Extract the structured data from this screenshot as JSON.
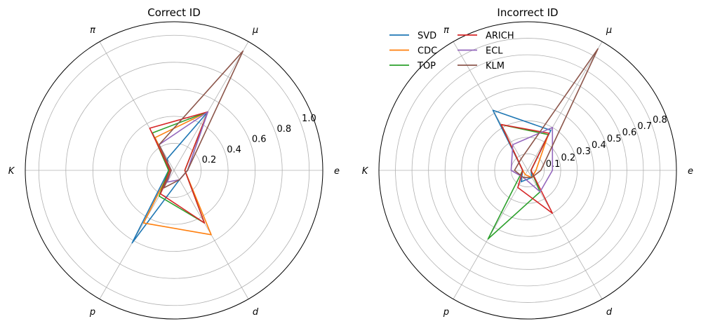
{
  "chart_data": [
    {
      "type": "radar",
      "title": "Correct ID",
      "axes": [
        "e",
        "μ",
        "π",
        "K",
        "p",
        "d"
      ],
      "axis_labels_display": [
        "e",
        "μ",
        "π",
        "K",
        "p",
        "d"
      ],
      "rlim": [
        0,
        1.1
      ],
      "rticks": [
        0.2,
        0.4,
        0.6,
        0.8,
        1.0
      ],
      "rtick_labels": [
        "0.2",
        "0.4",
        "0.6",
        "0.8",
        "1.0"
      ],
      "grid": true,
      "series": [
        {
          "name": "SVD",
          "color": "#1f77b4",
          "values": [
            0.1,
            0.5,
            0.1,
            0.04,
            0.62,
            0.08
          ]
        },
        {
          "name": "CDC",
          "color": "#ff7f0e",
          "values": [
            0.08,
            0.5,
            0.28,
            0.03,
            0.45,
            0.55
          ]
        },
        {
          "name": "TOP",
          "color": "#2ca02c",
          "values": [
            0.08,
            0.5,
            0.32,
            0.04,
            0.22,
            0.45
          ]
        },
        {
          "name": "ARICH",
          "color": "#d62728",
          "values": [
            0.08,
            0.5,
            0.36,
            0.03,
            0.2,
            0.45
          ]
        },
        {
          "name": "ECL",
          "color": "#9467bd",
          "values": [
            0.1,
            0.5,
            0.22,
            0.02,
            0.1,
            0.08
          ]
        },
        {
          "name": "KLM",
          "color": "#8c564b",
          "values": [
            0.1,
            1.02,
            0.22,
            0.02,
            0.15,
            0.08
          ]
        }
      ]
    },
    {
      "type": "radar",
      "title": "Incorrect ID",
      "axes": [
        "e",
        "μ",
        "π",
        "K",
        "p",
        "d"
      ],
      "axis_labels_display": [
        "e",
        "μ",
        "π",
        "K",
        "p",
        "d"
      ],
      "rlim": [
        0,
        0.9
      ],
      "rticks": [
        0.1,
        0.2,
        0.3,
        0.4,
        0.5,
        0.6,
        0.7,
        0.8
      ],
      "rtick_labels": [
        "0.1",
        "0.2",
        "0.3",
        "0.4",
        "0.5",
        "0.6",
        "0.7",
        "0.8"
      ],
      "grid": true,
      "legend": {
        "placement": "top-left",
        "columns": 2
      },
      "series": [
        {
          "name": "SVD",
          "color": "#1f77b4",
          "values": [
            0.02,
            0.28,
            0.42,
            0.03,
            0.08,
            0.05
          ]
        },
        {
          "name": "CDC",
          "color": "#ff7f0e",
          "values": [
            0.05,
            0.25,
            0.32,
            0.03,
            0.03,
            0.05
          ]
        },
        {
          "name": "TOP",
          "color": "#2ca02c",
          "values": [
            0.02,
            0.25,
            0.32,
            0.03,
            0.48,
            0.15
          ]
        },
        {
          "name": "ARICH",
          "color": "#d62728",
          "values": [
            0.02,
            0.26,
            0.32,
            0.03,
            0.12,
            0.3
          ]
        },
        {
          "name": "ECL",
          "color": "#9467bd",
          "values": [
            0.15,
            0.3,
            0.18,
            0.1,
            0.05,
            0.15
          ]
        },
        {
          "name": "KLM",
          "color": "#8c564b",
          "values": [
            0.08,
            0.85,
            0.08,
            0.08,
            0.05,
            0.05
          ]
        }
      ]
    }
  ]
}
